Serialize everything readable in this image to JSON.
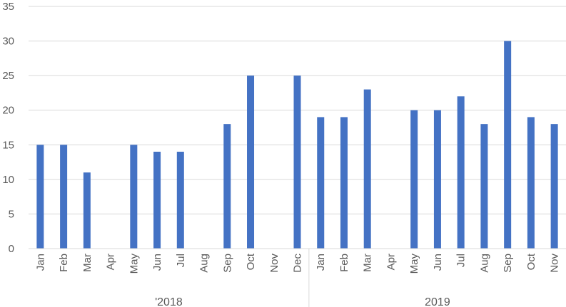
{
  "chart_data": {
    "type": "bar",
    "title": "",
    "xlabel": "",
    "ylabel": "",
    "ylim": [
      0,
      35
    ],
    "yticks": [
      0,
      5,
      10,
      15,
      20,
      25,
      30,
      35
    ],
    "grid": true,
    "legend": "none",
    "bar_color": "#4472c4",
    "groups": [
      {
        "label": "'2018",
        "start": 0,
        "end": 11
      },
      {
        "label": "2019",
        "start": 12,
        "end": 22
      }
    ],
    "categories": [
      "Jan",
      "Feb",
      "Mar",
      "Apr",
      "May",
      "Jun",
      "Jul",
      "Aug",
      "Sep",
      "Oct",
      "Nov",
      "Dec",
      "Jan",
      "Feb",
      "Mar",
      "Apr",
      "May",
      "Jun",
      "Jul",
      "Aug",
      "Sep",
      "Oct",
      "Nov"
    ],
    "values": [
      15,
      15,
      11,
      null,
      15,
      14,
      14,
      null,
      18,
      25,
      null,
      25,
      19,
      19,
      23,
      null,
      20,
      20,
      22,
      18,
      30,
      19,
      18
    ]
  }
}
